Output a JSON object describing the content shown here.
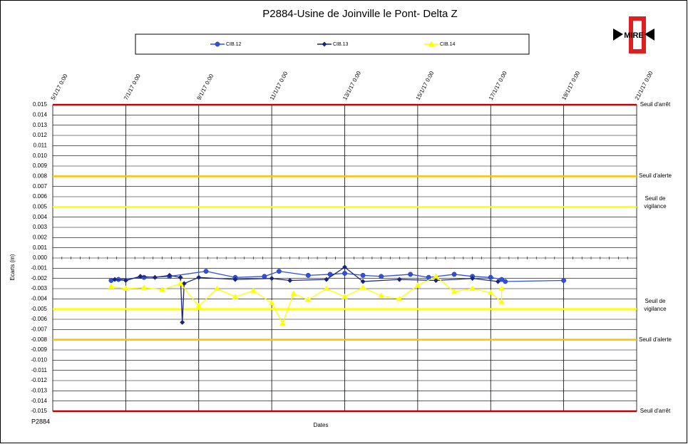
{
  "chart_data": {
    "type": "line",
    "title": "P2884-Usine de Joinville le Pont- Delta Z",
    "x_label": "Dates",
    "y_label": "Ecarts (m)",
    "footer": "P2884",
    "logo": "MIRE",
    "xlim": [
      5,
      21
    ],
    "xticks": [
      {
        "value": 5,
        "label": "5/1/17 0:00"
      },
      {
        "value": 7,
        "label": "7/1/17 0:00"
      },
      {
        "value": 9,
        "label": "9/1/17 0:00"
      },
      {
        "value": 11,
        "label": "11/1/17 0:00"
      },
      {
        "value": 13,
        "label": "13/1/17 0:00"
      },
      {
        "value": 15,
        "label": "15/1/17 0:00"
      },
      {
        "value": 17,
        "label": "17/1/17 0:00"
      },
      {
        "value": 19,
        "label": "19/1/17 0:00"
      },
      {
        "value": 21,
        "label": "21/1/17 0:00"
      }
    ],
    "ylim": [
      -0.015,
      0.015
    ],
    "yticks": [
      0.015,
      0.014,
      0.013,
      0.012,
      0.011,
      {
        "value": 0.01,
        "label": "0.010"
      },
      0.009,
      0.008,
      0.007,
      0.006,
      0.005,
      0.004,
      0.003,
      0.002,
      0.001,
      {
        "value": 0,
        "label": "0.000"
      },
      -0.001,
      -0.002,
      -0.003,
      -0.004,
      -0.005,
      -0.006,
      -0.007,
      -0.008,
      -0.009,
      {
        "value": -0.01,
        "label": "-0.010"
      },
      -0.011,
      -0.012,
      -0.013,
      -0.014,
      -0.015
    ],
    "grid": true,
    "thresholds": [
      {
        "label": "Seuil d'arrêt",
        "value": 0.015,
        "color": "#c00000"
      },
      {
        "label": "Seuil d'alerte",
        "value": 0.008,
        "color": "#ffc000"
      },
      {
        "label": "Seuil de vigilance",
        "value": 0.005,
        "color": "#ffff00"
      },
      {
        "label": "Seuil de vigilance",
        "value": -0.005,
        "color": "#ffff00"
      },
      {
        "label": "Seuil d'alerte",
        "value": -0.008,
        "color": "#ffc000"
      },
      {
        "label": "Seuil d'arrêt",
        "value": -0.015,
        "color": "#c00000"
      }
    ],
    "series": [
      {
        "name": "CIB.12",
        "color": "#3050e0",
        "marker": "circle",
        "x": [
          6.6,
          6.8,
          7.5,
          8.2,
          9.2,
          10.0,
          10.8,
          11.2,
          12.0,
          12.6,
          13.0,
          13.5,
          14.0,
          14.8,
          15.3,
          16.0,
          16.5,
          17.0,
          17.3,
          17.4,
          19.0
        ],
        "values": [
          -0.0022,
          -0.0021,
          -0.0019,
          -0.0018,
          -0.0013,
          -0.0019,
          -0.0018,
          -0.0013,
          -0.0017,
          -0.0016,
          -0.0015,
          -0.0017,
          -0.0018,
          -0.0016,
          -0.0019,
          -0.0016,
          -0.0018,
          -0.0019,
          -0.0021,
          -0.0023,
          -0.0022
        ]
      },
      {
        "name": "CIB.13",
        "color": "#1a237e",
        "marker": "diamond",
        "x": [
          6.7,
          7.0,
          7.4,
          7.8,
          8.2,
          8.5,
          8.55,
          8.6,
          9.0,
          10.0,
          11.0,
          11.5,
          12.5,
          13.0,
          13.5,
          14.5,
          15.5,
          16.5,
          17.2
        ],
        "values": [
          -0.0021,
          -0.0022,
          -0.0018,
          -0.0019,
          -0.0017,
          -0.0019,
          -0.0063,
          -0.0025,
          -0.0019,
          -0.0021,
          -0.002,
          -0.0022,
          -0.0021,
          -0.0009,
          -0.0023,
          -0.0021,
          -0.0022,
          -0.002,
          -0.0023
        ]
      },
      {
        "name": "CIB.14",
        "color": "#ffff00",
        "marker": "triangle",
        "x": [
          6.6,
          7.0,
          7.5,
          8.0,
          8.5,
          9.0,
          9.5,
          10.0,
          10.5,
          11.0,
          11.3,
          11.6,
          12.0,
          12.5,
          13.0,
          13.5,
          14.0,
          14.5,
          15.0,
          15.5,
          16.0,
          16.5,
          17.0,
          17.3,
          17.3
        ],
        "values": [
          -0.0028,
          -0.003,
          -0.0029,
          -0.0031,
          -0.0025,
          -0.0047,
          -0.003,
          -0.0038,
          -0.0032,
          -0.0044,
          -0.0064,
          -0.0035,
          -0.0041,
          -0.003,
          -0.0038,
          -0.0029,
          -0.0037,
          -0.004,
          -0.0027,
          -0.0018,
          -0.0033,
          -0.003,
          -0.0034,
          -0.0043,
          -0.003
        ]
      }
    ]
  }
}
